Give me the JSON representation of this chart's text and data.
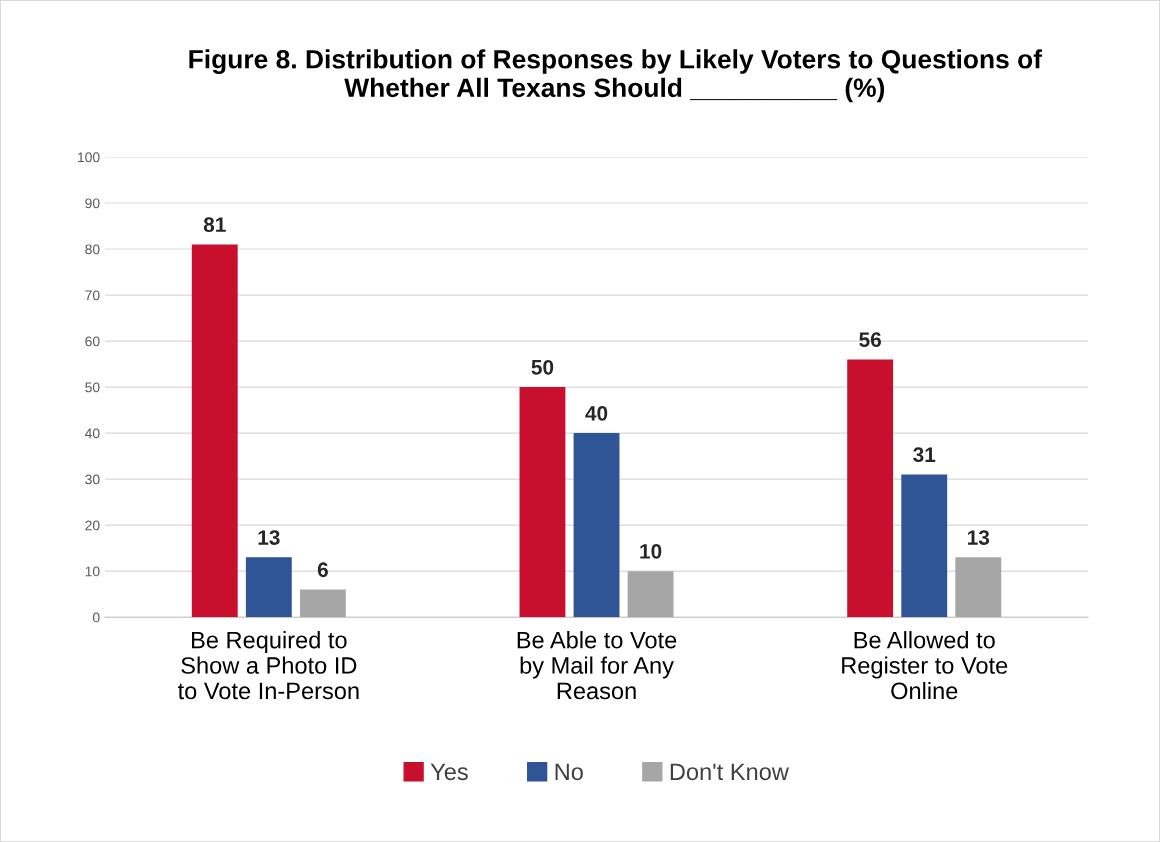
{
  "chart_data": {
    "type": "bar",
    "title": "Figure 8. Distribution of Responses by Likely Voters to Questions of\nWhether All Texans Should __________ (%)",
    "categories": [
      "Be Required to\nShow a Photo ID\nto Vote In-Person",
      "Be Able to Vote\nby Mail for Any\nReason",
      "Be Allowed to\nRegister to Vote\nOnline"
    ],
    "series": [
      {
        "name": "Yes",
        "color": "#c8102e",
        "values": [
          81,
          50,
          56
        ]
      },
      {
        "name": "No",
        "color": "#2f5597",
        "values": [
          13,
          40,
          31
        ]
      },
      {
        "name": "Don't Know",
        "color": "#a6a6a6",
        "values": [
          6,
          10,
          13
        ]
      }
    ],
    "ylim": [
      0,
      100
    ],
    "yticks": [
      0,
      10,
      20,
      30,
      40,
      50,
      60,
      70,
      80,
      90,
      100
    ],
    "grid": "y",
    "legend": "bottom",
    "data_labels": true
  }
}
